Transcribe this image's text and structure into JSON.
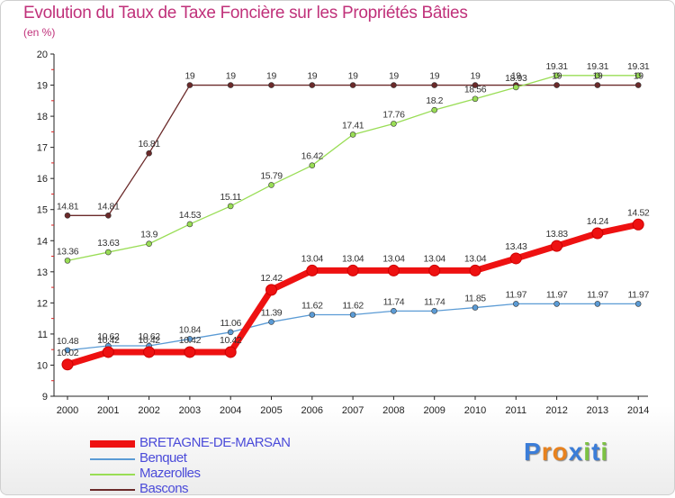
{
  "header": {
    "title": "Evolution du Taux de Taxe Foncière sur les Propriétés Bâties",
    "unit": "(en %)"
  },
  "logo": {
    "text": "Proxiti"
  },
  "chart_data": {
    "type": "line",
    "title": "Evolution du Taux de Taxe Foncière sur les Propriétés Bâties",
    "ylabel": "(en %)",
    "xlabel": "",
    "x": [
      "2000",
      "2001",
      "2002",
      "2003",
      "2004",
      "2005",
      "2006",
      "2007",
      "2008",
      "2009",
      "2010",
      "2011",
      "2012",
      "2013",
      "2014"
    ],
    "ylim": [
      9,
      20
    ],
    "yticks": [
      9,
      10,
      11,
      12,
      13,
      14,
      15,
      16,
      17,
      18,
      19,
      20
    ],
    "grid": false,
    "legend_position": "bottom-left",
    "series": [
      {
        "name": "BRETAGNE-DE-MARSAN",
        "color": "#ee1111",
        "values": [
          10.02,
          10.42,
          10.42,
          10.42,
          10.42,
          12.42,
          13.04,
          13.04,
          13.04,
          13.04,
          13.04,
          13.43,
          13.83,
          14.24,
          14.52
        ],
        "labels": [
          "10.02",
          "10.42",
          "10.42",
          "10.42",
          "10.42",
          "12.42",
          "13.04",
          "13.04",
          "13.04",
          "13.04",
          "13.04",
          "13.43",
          "13.83",
          "14.24",
          "14.52"
        ]
      },
      {
        "name": "Benquet",
        "color": "#5b9bd5",
        "values": [
          10.48,
          10.62,
          10.62,
          10.84,
          11.06,
          11.39,
          11.62,
          11.62,
          11.74,
          11.74,
          11.85,
          11.97,
          11.97,
          11.97,
          11.97
        ],
        "labels": [
          "10.48",
          "10.62",
          "10.62",
          "10.84",
          "11.06",
          "11.39",
          "11.62",
          "11.62",
          "11.74",
          "11.74",
          "11.85",
          "11.97",
          "11.97",
          "11.97",
          "11.97"
        ]
      },
      {
        "name": "Mazerolles",
        "color": "#99dd55",
        "values": [
          13.36,
          13.63,
          13.9,
          14.53,
          15.11,
          15.79,
          16.42,
          17.41,
          17.76,
          18.2,
          18.56,
          18.93,
          19.31,
          19.31,
          19.31
        ],
        "labels": [
          "13.36",
          "13.63",
          "13.9",
          "14.53",
          "15.11",
          "15.79",
          "16.42",
          "17.41",
          "17.76",
          "18.2",
          "18.56",
          "18.93",
          "19.31",
          "19.31",
          "19.31"
        ]
      },
      {
        "name": "Bascons",
        "color": "#6b2a2a",
        "values": [
          14.81,
          14.81,
          16.81,
          19,
          19,
          19,
          19,
          19,
          19,
          19,
          19,
          19,
          19,
          19,
          19
        ],
        "labels": [
          "14.81",
          "14.81",
          "16.81",
          "19",
          "19",
          "19",
          "19",
          "19",
          "19",
          "19",
          "19",
          "19",
          "19",
          "19",
          "19"
        ]
      }
    ]
  }
}
